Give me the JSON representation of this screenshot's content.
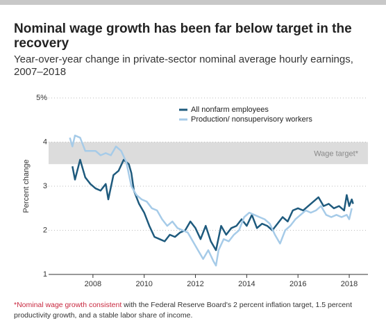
{
  "chart_data": {
    "type": "line",
    "title": [
      "Nominal wage growth has been far below target in the",
      "recovery"
    ],
    "subtitle": [
      "Year-over-year change in private-sector nominal average hourly earnings,",
      "2007–2018"
    ],
    "y_label": "Percent change",
    "xlim": [
      2006.27,
      2018.73
    ],
    "xticks": [
      2008,
      2010,
      2012,
      2014,
      2016,
      2018
    ],
    "ylim": [
      1,
      5
    ],
    "yticks": [
      1,
      2,
      3,
      4,
      {
        "value": 5,
        "label": "5%"
      }
    ],
    "grid": true,
    "band": {
      "from": 3.5,
      "to": 4,
      "label": "Wage target*",
      "color": "#dcdcdc"
    },
    "series": [
      {
        "name": "All nonfarm employees",
        "color": "#1e5a7d",
        "x": [
          2007.2,
          2007.3,
          2007.5,
          2007.7,
          2007.9,
          2008.1,
          2008.3,
          2008.5,
          2008.6,
          2008.8,
          2009.0,
          2009.2,
          2009.4,
          2009.5,
          2009.6,
          2009.8,
          2010.0,
          2010.2,
          2010.4,
          2010.6,
          2010.8,
          2011.0,
          2011.2,
          2011.4,
          2011.6,
          2011.8,
          2012.0,
          2012.2,
          2012.4,
          2012.6,
          2012.8,
          2013.0,
          2013.2,
          2013.4,
          2013.6,
          2013.8,
          2014.0,
          2014.2,
          2014.4,
          2014.6,
          2014.8,
          2015.0,
          2015.2,
          2015.4,
          2015.6,
          2015.8,
          2016.0,
          2016.2,
          2016.4,
          2016.6,
          2016.8,
          2017.0,
          2017.2,
          2017.4,
          2017.6,
          2017.8,
          2017.9,
          2018.0,
          2018.1,
          2018.15
        ],
        "values": [
          3.45,
          3.15,
          3.6,
          3.2,
          3.05,
          2.95,
          2.9,
          3.05,
          2.7,
          3.25,
          3.35,
          3.6,
          3.5,
          3.3,
          2.9,
          2.6,
          2.4,
          2.1,
          1.85,
          1.8,
          1.75,
          1.9,
          1.85,
          1.95,
          2.0,
          2.2,
          2.05,
          1.8,
          2.1,
          1.75,
          1.55,
          2.1,
          1.9,
          2.05,
          2.1,
          2.25,
          2.1,
          2.35,
          2.05,
          2.15,
          2.1,
          2.0,
          2.15,
          2.3,
          2.2,
          2.45,
          2.5,
          2.45,
          2.55,
          2.65,
          2.75,
          2.55,
          2.6,
          2.5,
          2.55,
          2.45,
          2.8,
          2.55,
          2.7,
          2.6
        ]
      },
      {
        "name": "Production/ nonsupervisory workers",
        "color": "#a6cbe8",
        "x": [
          2007.1,
          2007.2,
          2007.3,
          2007.5,
          2007.7,
          2007.9,
          2008.1,
          2008.3,
          2008.5,
          2008.7,
          2008.9,
          2009.1,
          2009.3,
          2009.5,
          2009.7,
          2009.9,
          2010.1,
          2010.3,
          2010.5,
          2010.7,
          2010.9,
          2011.1,
          2011.3,
          2011.5,
          2011.7,
          2011.9,
          2012.1,
          2012.3,
          2012.5,
          2012.7,
          2012.8,
          2012.9,
          2013.1,
          2013.3,
          2013.5,
          2013.7,
          2013.9,
          2014.1,
          2014.3,
          2014.5,
          2014.7,
          2014.9,
          2015.1,
          2015.3,
          2015.5,
          2015.7,
          2015.9,
          2016.1,
          2016.3,
          2016.5,
          2016.7,
          2016.9,
          2017.1,
          2017.3,
          2017.5,
          2017.7,
          2017.9,
          2018.0,
          2018.1
        ],
        "values": [
          4.1,
          3.9,
          4.15,
          4.1,
          3.8,
          3.8,
          3.8,
          3.7,
          3.75,
          3.7,
          3.9,
          3.8,
          3.55,
          3.0,
          2.8,
          2.7,
          2.65,
          2.5,
          2.45,
          2.25,
          2.1,
          2.2,
          2.05,
          2.0,
          1.95,
          1.75,
          1.55,
          1.35,
          1.55,
          1.3,
          1.2,
          1.55,
          1.8,
          1.75,
          1.9,
          2.0,
          2.3,
          2.4,
          2.35,
          2.3,
          2.25,
          2.15,
          1.9,
          1.7,
          2.0,
          2.1,
          2.25,
          2.35,
          2.45,
          2.4,
          2.45,
          2.55,
          2.35,
          2.3,
          2.35,
          2.3,
          2.35,
          2.25,
          2.5
        ]
      }
    ],
    "footnote": {
      "highlight": "*Nominal wage growth consistent",
      "text": " with the Federal Reserve Board's 2 percent inflation target, 1.5 percent productivity growth, and a stable labor share of income."
    }
  }
}
